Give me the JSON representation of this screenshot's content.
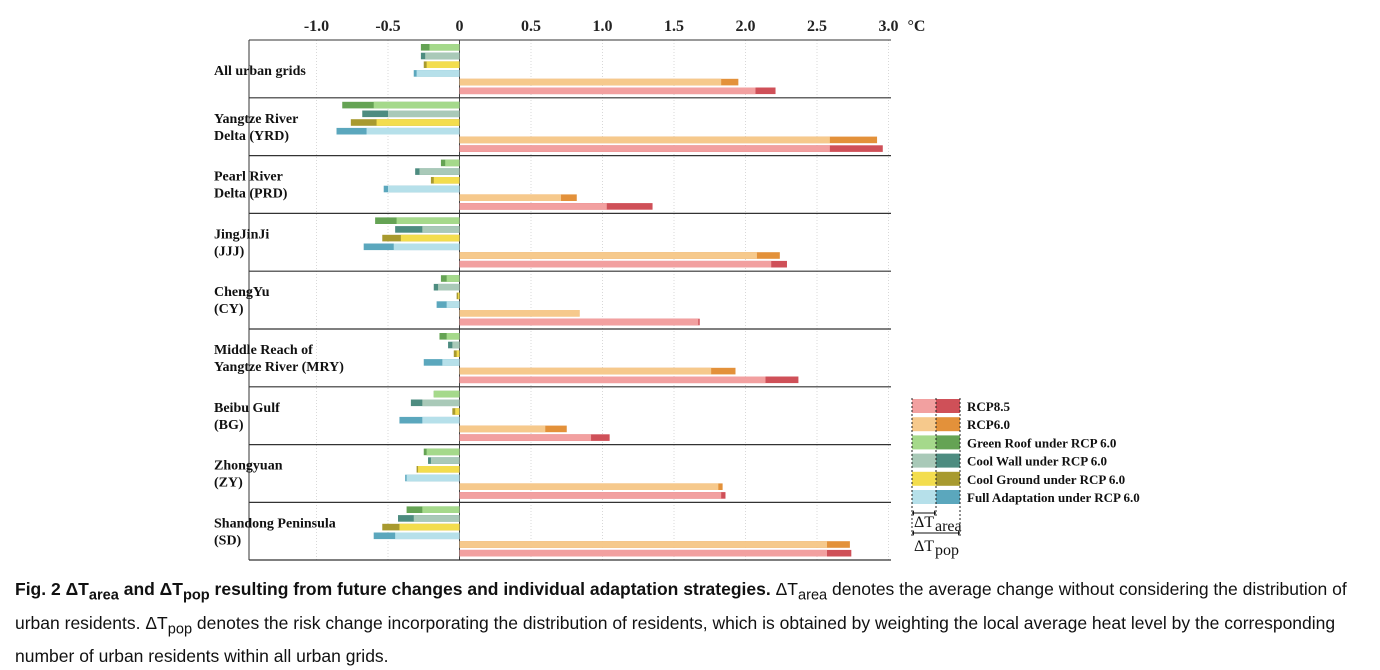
{
  "chart_data": {
    "type": "bar",
    "orientation": "horizontal",
    "unit_label": "°C",
    "xlim": [
      -1.5,
      3.0
    ],
    "x_ticks": [
      "-1.0",
      "-0.5",
      "0",
      "0.5",
      "1.0",
      "1.5",
      "2.0",
      "2.5",
      "3.0"
    ],
    "x_tick_values": [
      -1.0,
      -0.5,
      0,
      0.5,
      1.0,
      1.5,
      2.0,
      2.5,
      3.0
    ],
    "groups": [
      {
        "label_lines": [
          "All urban grids"
        ],
        "green_roof": [
          -0.21,
          -0.27
        ],
        "cool_wall": [
          -0.24,
          -0.27
        ],
        "cool_ground": [
          -0.23,
          -0.25
        ],
        "full_adaptation": [
          -0.3,
          -0.32
        ],
        "rcp6": [
          1.83,
          1.95
        ],
        "rcp85": [
          2.07,
          2.21
        ]
      },
      {
        "label_lines": [
          "Yangtze River",
          "Delta (YRD)"
        ],
        "green_roof": [
          -0.6,
          -0.82
        ],
        "cool_wall": [
          -0.5,
          -0.68
        ],
        "cool_ground": [
          -0.58,
          -0.76
        ],
        "full_adaptation": [
          -0.65,
          -0.86
        ],
        "rcp6": [
          2.59,
          2.92
        ],
        "rcp85": [
          2.59,
          2.96
        ]
      },
      {
        "label_lines": [
          "Pearl River",
          "Delta (PRD)"
        ],
        "green_roof": [
          -0.1,
          -0.13
        ],
        "cool_wall": [
          -0.28,
          -0.31
        ],
        "cool_ground": [
          -0.18,
          -0.2
        ],
        "full_adaptation": [
          -0.5,
          -0.53
        ],
        "rcp6": [
          0.71,
          0.82
        ],
        "rcp85": [
          1.03,
          1.35
        ]
      },
      {
        "label_lines": [
          "JingJinJi",
          "(JJJ)"
        ],
        "green_roof": [
          -0.44,
          -0.59
        ],
        "cool_wall": [
          -0.26,
          -0.45
        ],
        "cool_ground": [
          -0.41,
          -0.54
        ],
        "full_adaptation": [
          -0.46,
          -0.67
        ],
        "rcp6": [
          2.08,
          2.24
        ],
        "rcp85": [
          2.18,
          2.29
        ]
      },
      {
        "label_lines": [
          "ChengYu",
          "(CY)"
        ],
        "green_roof": [
          -0.09,
          -0.13
        ],
        "cool_wall": [
          -0.15,
          -0.18
        ],
        "cool_ground": [
          -0.01,
          -0.02
        ],
        "full_adaptation": [
          -0.09,
          -0.16
        ],
        "rcp6": [
          0.84,
          0.84
        ],
        "rcp85": [
          1.67,
          1.68
        ]
      },
      {
        "label_lines": [
          "Middle Reach of",
          "Yangtze River (MRY)"
        ],
        "green_roof": [
          -0.09,
          -0.14
        ],
        "cool_wall": [
          -0.05,
          -0.08
        ],
        "cool_ground": [
          -0.02,
          -0.04
        ],
        "full_adaptation": [
          -0.12,
          -0.25
        ],
        "rcp6": [
          1.76,
          1.93
        ],
        "rcp85": [
          2.14,
          2.37
        ]
      },
      {
        "label_lines": [
          "Beibu Gulf",
          "(BG)"
        ],
        "green_roof": [
          -0.18,
          -0.18
        ],
        "cool_wall": [
          -0.26,
          -0.34
        ],
        "cool_ground": [
          -0.03,
          -0.05
        ],
        "full_adaptation": [
          -0.26,
          -0.42
        ],
        "rcp6": [
          0.6,
          0.75
        ],
        "rcp85": [
          0.92,
          1.05
        ]
      },
      {
        "label_lines": [
          "Zhongyuan",
          "(ZY)"
        ],
        "green_roof": [
          -0.23,
          -0.25
        ],
        "cool_wall": [
          -0.2,
          -0.22
        ],
        "cool_ground": [
          -0.29,
          -0.3
        ],
        "full_adaptation": [
          -0.37,
          -0.38
        ],
        "rcp6": [
          1.81,
          1.84
        ],
        "rcp85": [
          1.83,
          1.86
        ]
      },
      {
        "label_lines": [
          "Shandong Peninsula",
          "(SD)"
        ],
        "green_roof": [
          -0.26,
          -0.37
        ],
        "cool_wall": [
          -0.32,
          -0.43
        ],
        "cool_ground": [
          -0.42,
          -0.54
        ],
        "full_adaptation": [
          -0.45,
          -0.6
        ],
        "rcp6": [
          2.57,
          2.73
        ],
        "rcp85": [
          2.57,
          2.74
        ]
      }
    ],
    "legend": [
      {
        "key": "rcp85",
        "label": "RCP8.5",
        "light": "#f2a0a0",
        "dark": "#cf5058"
      },
      {
        "key": "rcp6",
        "label": "RCP6.0",
        "light": "#f6c98c",
        "dark": "#e3913a"
      },
      {
        "key": "green_roof",
        "label": "Green Roof under RCP 6.0",
        "light": "#a5d98b",
        "dark": "#65a354"
      },
      {
        "key": "cool_wall",
        "label": "Cool Wall under RCP 6.0",
        "light": "#a9c9b8",
        "dark": "#4d8c80"
      },
      {
        "key": "cool_ground",
        "label": "Cool Ground under RCP 6.0",
        "light": "#f3dd4e",
        "dark": "#a89a2f"
      },
      {
        "key": "full_adaptation",
        "label": "Full Adaptation under RCP 6.0",
        "light": "#b6e0ea",
        "dark": "#5ba7bd"
      }
    ],
    "legend_placement": "bottom-right",
    "legend_note": {
      "area_label": "ΔT",
      "area_sub": "area",
      "pop_label": "ΔT",
      "pop_sub": "pop"
    }
  },
  "caption": {
    "fig_label": "Fig. 2 ",
    "title_part1": "ΔT",
    "title_sub1": "area",
    "title_part2": " and ΔT",
    "title_sub2": "pop",
    "title_part3": " resulting from future changes and individual adaptation strategies.",
    "body_part1": " ΔT",
    "body_sub1": "area",
    "body_part2": " denotes the average change without considering the distribution of urban residents. ΔT",
    "body_sub2": "pop",
    "body_part3": " denotes the risk change incorporating the distribution of residents, which is obtained by weighting the local average heat level by the corresponding number of urban residents within all urban grids."
  }
}
